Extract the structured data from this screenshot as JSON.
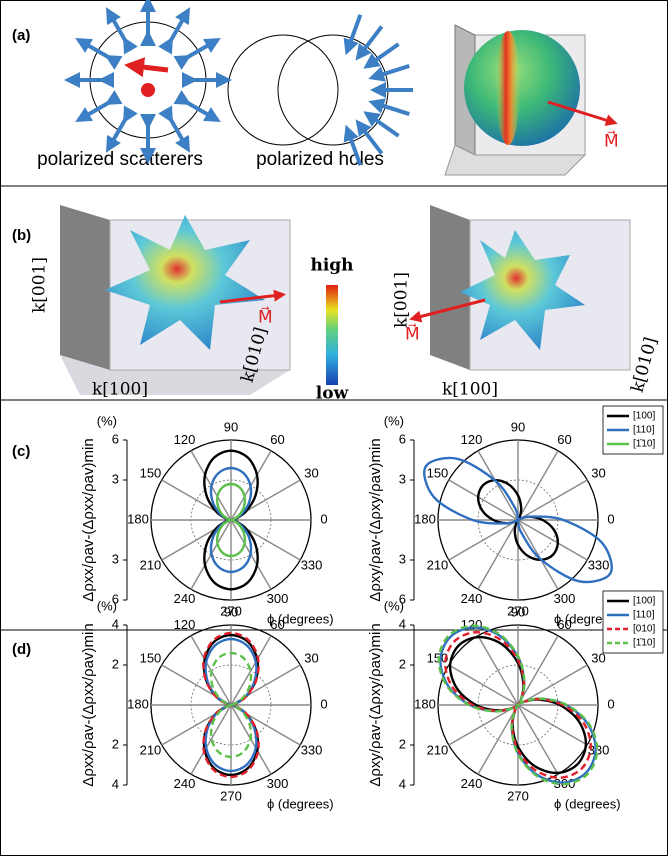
{
  "panel_labels": [
    "(a)",
    "(b)",
    "(c)",
    "(d)"
  ],
  "panel_a": {
    "captions": [
      "polarized scatterers",
      "polarized holes"
    ],
    "magnetization": "M⃗"
  },
  "panel_b": {
    "axis_labels": [
      "k[001]",
      "k[010]",
      "k[100]"
    ],
    "colorbar": [
      "high",
      "low"
    ],
    "magnetization": "M⃗"
  },
  "chart_data": [
    {
      "type": "polar",
      "ylabel": "Δρxx/ρav-(Δρxx/ρav)min",
      "yunit": "(%)",
      "xlabel": "ϕ (degrees)",
      "rlim": [
        0,
        6
      ],
      "rticks": [
        3,
        6
      ],
      "thetaticks": [
        0,
        30,
        60,
        90,
        120,
        150,
        180,
        210,
        240,
        270,
        300,
        330
      ],
      "theta": [
        0,
        15,
        30,
        45,
        60,
        75,
        90,
        105,
        120,
        135,
        150,
        165,
        180,
        195,
        210,
        225,
        240,
        255,
        270,
        285,
        300,
        315,
        330,
        345
      ],
      "series": [
        {
          "color": "#000000",
          "values": [
            0,
            0.35,
            1.3,
            2.6,
            3.9,
            4.85,
            5.2,
            4.85,
            3.9,
            2.6,
            1.3,
            0.35,
            0,
            0.35,
            1.3,
            2.6,
            3.9,
            4.85,
            5.2,
            4.85,
            3.9,
            2.6,
            1.3,
            0.35
          ]
        },
        {
          "color": "#2f6fc0",
          "values": [
            0,
            0.26,
            0.98,
            1.95,
            2.93,
            3.64,
            3.9,
            3.64,
            2.93,
            1.95,
            0.98,
            0.26,
            0,
            0.26,
            0.98,
            1.95,
            2.93,
            3.64,
            3.9,
            3.64,
            2.93,
            1.95,
            0.98,
            0.26
          ]
        },
        {
          "color": "#5cc04a",
          "values": [
            0,
            0.18,
            0.68,
            1.35,
            2.03,
            2.52,
            2.7,
            2.52,
            2.03,
            1.35,
            0.68,
            0.18,
            0,
            0.18,
            0.68,
            1.35,
            2.03,
            2.52,
            2.7,
            2.52,
            2.03,
            1.35,
            0.68,
            0.18
          ]
        }
      ]
    },
    {
      "type": "polar",
      "ylabel": "Δρxy/ρav-(Δρxy/ρav)min",
      "yunit": "(%)",
      "xlabel": "ϕ (degrees)",
      "rlim": [
        0,
        6
      ],
      "rticks": [
        3,
        6
      ],
      "thetaticks": [
        0,
        30,
        60,
        90,
        120,
        150,
        180,
        210,
        240,
        270,
        300,
        330
      ],
      "theta": [
        0,
        15,
        30,
        45,
        60,
        75,
        90,
        105,
        120,
        135,
        150,
        165,
        180,
        195,
        210,
        225,
        240,
        255,
        270,
        285,
        300,
        315,
        330,
        345
      ],
      "series": [
        {
          "color": "#000000",
          "values": [
            1.85,
            0.93,
            0.25,
            0,
            0.25,
            0.93,
            1.85,
            2.78,
            3.45,
            3.7,
            3.45,
            2.78,
            1.85,
            0.93,
            0.25,
            0,
            0.25,
            0.93,
            1.85,
            2.78,
            3.45,
            3.7,
            3.45,
            2.78
          ]
        },
        {
          "color": "#2f6fc0",
          "values": [
            3.4,
            1.0,
            0.12,
            0,
            0,
            0,
            0.12,
            1.0,
            3.4,
            6.5,
            8,
            6.5,
            3.4,
            1.0,
            0.12,
            0,
            0,
            0,
            0.12,
            1.0,
            3.4,
            6.5,
            8,
            6.5
          ]
        }
      ],
      "legend": [
        {
          "name": "[100]",
          "color": "#000000"
        },
        {
          "name": "[110]",
          "color": "#2f6fc0"
        },
        {
          "name": "[1̄10]",
          "color": "#5cc04a"
        }
      ]
    },
    {
      "type": "polar",
      "ylabel": "Δρxx/ρav-(Δρxx/ρav)min",
      "yunit": "(%)",
      "xlabel": "ϕ (degrees)",
      "rlim": [
        0,
        4
      ],
      "rticks": [
        2,
        4
      ],
      "thetaticks": [
        0,
        30,
        60,
        90,
        120,
        150,
        180,
        210,
        240,
        270,
        300,
        330
      ],
      "theta": [
        0,
        15,
        30,
        45,
        60,
        75,
        90,
        105,
        120,
        135,
        150,
        165,
        180,
        195,
        210,
        225,
        240,
        255,
        270,
        285,
        300,
        315,
        330,
        345
      ],
      "series": [
        {
          "color": "#000000",
          "values": [
            0,
            0.23,
            0.88,
            1.75,
            2.63,
            3.27,
            3.5,
            3.27,
            2.63,
            1.75,
            0.88,
            0.23,
            0,
            0.23,
            0.88,
            1.75,
            2.63,
            3.27,
            3.5,
            3.27,
            2.63,
            1.75,
            0.88,
            0.23
          ]
        },
        {
          "color": "#2f6fc0",
          "values": [
            0,
            0.22,
            0.83,
            1.65,
            2.48,
            3.08,
            3.3,
            3.08,
            2.48,
            1.65,
            0.83,
            0.22,
            0,
            0.22,
            0.83,
            1.65,
            2.48,
            3.08,
            3.3,
            3.08,
            2.48,
            1.65,
            0.83,
            0.22
          ]
        },
        {
          "color": "#e0202a",
          "dash": true,
          "values": [
            0,
            0.24,
            0.9,
            1.8,
            2.7,
            3.36,
            3.6,
            3.36,
            2.7,
            1.8,
            0.9,
            0.24,
            0,
            0.24,
            0.9,
            1.8,
            2.7,
            3.36,
            3.6,
            3.36,
            2.7,
            1.8,
            0.9,
            0.24
          ]
        },
        {
          "color": "#5cc04a",
          "dash": true,
          "values": [
            0,
            0.17,
            0.65,
            1.3,
            1.95,
            2.43,
            2.6,
            2.43,
            1.95,
            1.3,
            0.65,
            0.17,
            0,
            0.17,
            0.65,
            1.3,
            1.95,
            2.43,
            2.6,
            2.43,
            1.95,
            1.3,
            0.65,
            0.17
          ]
        }
      ]
    },
    {
      "type": "polar",
      "ylabel": "Δρxy/ρav-(Δρxy/ρav)min",
      "yunit": "(%)",
      "xlabel": "ϕ (degrees)",
      "rlim": [
        0,
        4
      ],
      "rticks": [
        2,
        4
      ],
      "thetaticks": [
        0,
        30,
        60,
        90,
        120,
        150,
        180,
        210,
        240,
        270,
        300,
        330
      ],
      "theta": [
        0,
        15,
        30,
        45,
        60,
        75,
        90,
        105,
        120,
        135,
        150,
        165,
        180,
        195,
        210,
        225,
        240,
        255,
        270,
        285,
        300,
        315,
        330,
        345
      ],
      "series": [
        {
          "color": "#000000",
          "values": [
            2.1,
            1.05,
            0.28,
            0,
            0.28,
            1.05,
            2.1,
            3.15,
            3.92,
            4.2,
            3.92,
            3.15,
            2.1,
            1.05,
            0.28,
            0,
            0.28,
            1.05,
            2.1,
            3.15,
            3.92,
            4.2,
            3.92,
            3.15
          ]
        },
        {
          "color": "#2f6fc0",
          "values": [
            2.4,
            1.2,
            0.32,
            0,
            0.32,
            1.2,
            2.4,
            3.6,
            4.48,
            4.8,
            4.48,
            3.6,
            2.4,
            1.2,
            0.32,
            0,
            0.32,
            1.2,
            2.4,
            3.6,
            4.48,
            4.8,
            4.48,
            3.6
          ]
        },
        {
          "color": "#e0202a",
          "dash": true,
          "values": [
            2.25,
            1.13,
            0.3,
            0,
            0.3,
            1.13,
            2.25,
            3.38,
            4.2,
            4.5,
            4.2,
            3.38,
            2.25,
            1.13,
            0.3,
            0,
            0.3,
            1.13,
            2.25,
            3.38,
            4.2,
            4.5,
            4.2,
            3.38
          ]
        },
        {
          "color": "#5cc04a",
          "dash": true,
          "values": [
            2.45,
            1.23,
            0.33,
            0,
            0.33,
            1.23,
            2.45,
            3.68,
            4.57,
            4.9,
            4.57,
            3.68,
            2.45,
            1.23,
            0.33,
            0,
            0.33,
            1.23,
            2.45,
            3.68,
            4.57,
            4.9,
            4.57,
            3.68
          ]
        }
      ],
      "legend": [
        {
          "name": "[100]",
          "color": "#000000"
        },
        {
          "name": "[110]",
          "color": "#2f6fc0"
        },
        {
          "name": "[010]",
          "color": "#e0202a",
          "dash": true
        },
        {
          "name": "[1̄10]",
          "color": "#5cc04a",
          "dash": true
        }
      ]
    }
  ]
}
